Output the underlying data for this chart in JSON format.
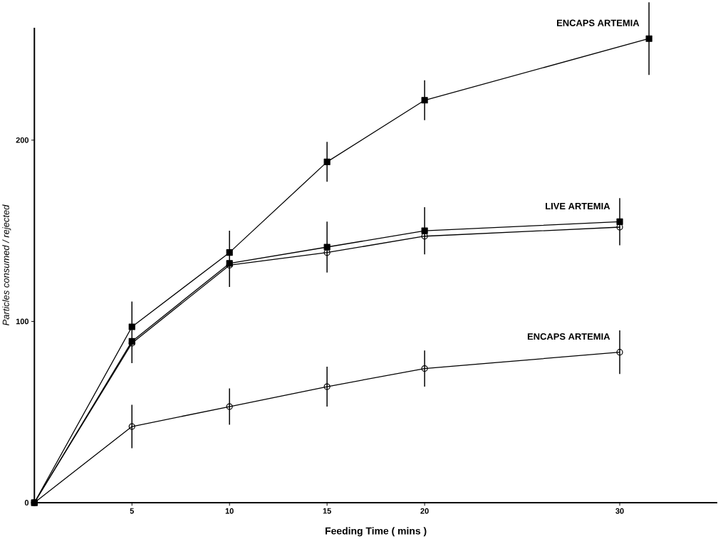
{
  "chart_data": {
    "type": "line",
    "xlabel": "Feeding  Time  ( mins )",
    "ylabel": "Particles  consumed / rejected",
    "xlim": [
      0,
      35
    ],
    "ylim": [
      0,
      262
    ],
    "xticks": [
      5,
      10,
      15,
      20,
      30
    ],
    "yticks": [
      0,
      100,
      200
    ],
    "grid": false,
    "legend": false,
    "series": [
      {
        "name": "ENCAPS ARTEMIA",
        "color": "#000000",
        "marker": "square",
        "x": [
          0,
          5,
          10,
          15,
          20,
          31.5
        ],
        "values": [
          0,
          97,
          138,
          188,
          222,
          256
        ],
        "errors": [
          null,
          [
            77,
            111
          ],
          [
            119,
            150
          ],
          11,
          11,
          20
        ]
      },
      {
        "name": "LIVE ARTEMIA",
        "color": "#000000",
        "marker": "square",
        "x": [
          0,
          5,
          10,
          15,
          20,
          30
        ],
        "values": [
          0,
          89,
          132,
          141,
          150,
          155
        ],
        "errors": [
          null,
          null,
          null,
          14,
          13,
          13
        ]
      },
      {
        "color": "#000000",
        "marker": "circle",
        "x": [
          0,
          5,
          10,
          15,
          20,
          30
        ],
        "values": [
          0,
          88,
          131,
          138,
          147,
          152
        ]
      },
      {
        "name": "ENCAPS ARTEMIA",
        "color": "#000000",
        "marker": "circle",
        "x": [
          0,
          5,
          10,
          15,
          20,
          30
        ],
        "values": [
          0,
          42,
          53,
          64,
          74,
          83
        ],
        "errors": [
          null,
          12,
          10,
          11,
          10,
          12
        ]
      }
    ]
  }
}
